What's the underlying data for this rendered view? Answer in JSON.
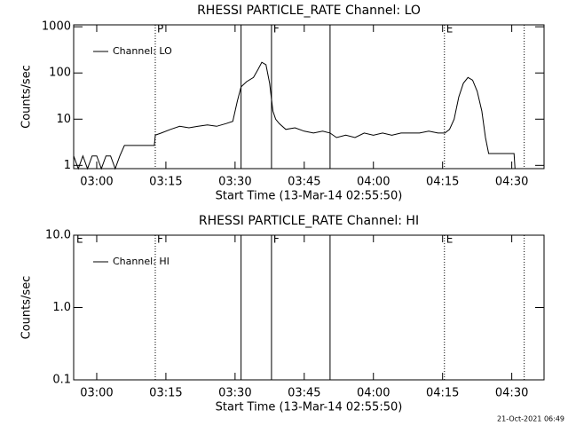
{
  "chart_data": [
    {
      "type": "line",
      "title": "RHESSI PARTICLE_RATE Channel: LO",
      "xlabel": "Start Time (13-Mar-14 02:55:50)",
      "ylabel": "Counts/sec",
      "log_scale": true,
      "legend": "upper left",
      "color": "#000000",
      "xlim": [
        175,
        277
      ],
      "xticks": [
        {
          "value": 180,
          "label": "03:00"
        },
        {
          "value": 195,
          "label": "03:15"
        },
        {
          "value": 210,
          "label": "03:30"
        },
        {
          "value": 225,
          "label": "03:45"
        },
        {
          "value": 240,
          "label": "04:00"
        },
        {
          "value": 255,
          "label": "04:15"
        },
        {
          "value": 270,
          "label": "04:30"
        }
      ],
      "ylim": [
        0.85,
        1100
      ],
      "yticks": [
        1,
        10,
        100,
        1000
      ],
      "markers": [
        {
          "x": 192.7,
          "style": "dotted"
        },
        {
          "x": 211.3,
          "style": "solid"
        },
        {
          "x": 217.9,
          "style": "solid"
        },
        {
          "x": 230.6,
          "style": "solid"
        },
        {
          "x": 255.4,
          "style": "dotted"
        },
        {
          "x": 272.7,
          "style": "dotted"
        }
      ],
      "annotations": [
        {
          "x": 192.7,
          "label": "P"
        },
        {
          "x": 217.9,
          "label": "F"
        },
        {
          "x": 255.4,
          "label": "E"
        }
      ],
      "x": [
        175,
        176,
        177,
        178,
        179,
        180,
        181,
        182,
        183,
        184,
        185,
        186,
        187,
        188,
        190,
        192.5,
        192.7,
        194,
        196,
        198,
        200,
        202,
        204,
        206,
        208,
        209.5,
        210.5,
        211.3,
        212.5,
        214,
        215,
        215.8,
        216.7,
        217.5,
        218.2,
        218.8,
        219.6,
        221,
        223,
        225,
        227,
        229,
        230.6,
        232,
        234,
        236,
        238,
        240,
        242,
        244,
        246,
        248,
        250,
        252,
        254,
        255.5,
        256.5,
        257.5,
        258.5,
        259.5,
        260.5,
        261.5,
        262.5,
        263.5,
        264.3,
        265,
        266,
        268,
        270.5,
        270.7,
        271.2
      ],
      "series": [
        {
          "name": "Channel: LO",
          "color": "#000000",
          "values": [
            1.6,
            0.85,
            1.6,
            0.85,
            1.6,
            1.6,
            0.85,
            1.6,
            1.6,
            0.85,
            1.6,
            2.7,
            2.7,
            2.7,
            2.7,
            2.7,
            4.5,
            5,
            6,
            7,
            6.5,
            7,
            7.5,
            7,
            8,
            9,
            25,
            50,
            65,
            80,
            120,
            170,
            150,
            60,
            15,
            10,
            8,
            6,
            6.5,
            5.5,
            5,
            5.5,
            5,
            4,
            4.5,
            4,
            5,
            4.5,
            5,
            4.5,
            5,
            5,
            5,
            5.5,
            5,
            5,
            6,
            10,
            30,
            60,
            80,
            70,
            40,
            15,
            4,
            1.8,
            1.8,
            1.8,
            1.8,
            0.85,
            0.85
          ]
        }
      ]
    },
    {
      "type": "line",
      "title": "RHESSI PARTICLE_RATE Channel: HI",
      "xlabel": "Start Time (13-Mar-14 02:55:50)",
      "ylabel": "Counts/sec",
      "log_scale": true,
      "legend": "upper left",
      "color": "#000000",
      "xlim": [
        175,
        277
      ],
      "xticks": [
        {
          "value": 180,
          "label": "03:00"
        },
        {
          "value": 195,
          "label": "03:15"
        },
        {
          "value": 210,
          "label": "03:30"
        },
        {
          "value": 225,
          "label": "03:45"
        },
        {
          "value": 240,
          "label": "04:00"
        },
        {
          "value": 255,
          "label": "04:15"
        },
        {
          "value": 270,
          "label": "04:30"
        }
      ],
      "ylim": [
        0.1,
        10
      ],
      "yticks": [
        0.1,
        {
          "value": 1,
          "label": "1.0"
        },
        {
          "value": 10,
          "label": "10.0"
        }
      ],
      "markers": [
        {
          "x": 192.7,
          "style": "dotted"
        },
        {
          "x": 211.3,
          "style": "solid"
        },
        {
          "x": 217.9,
          "style": "solid"
        },
        {
          "x": 230.6,
          "style": "solid"
        },
        {
          "x": 255.4,
          "style": "dotted"
        },
        {
          "x": 272.7,
          "style": "dotted"
        }
      ],
      "annotations": [
        {
          "x": 175.2,
          "label": "E"
        },
        {
          "x": 192.7,
          "label": "F"
        },
        {
          "x": 217.9,
          "label": "F"
        },
        {
          "x": 255.4,
          "label": "E"
        }
      ],
      "x": [],
      "series": [
        {
          "name": "Channel: HI",
          "color": "#000000",
          "values": []
        }
      ]
    }
  ],
  "timestamp": "21-Oct-2021 06:49"
}
